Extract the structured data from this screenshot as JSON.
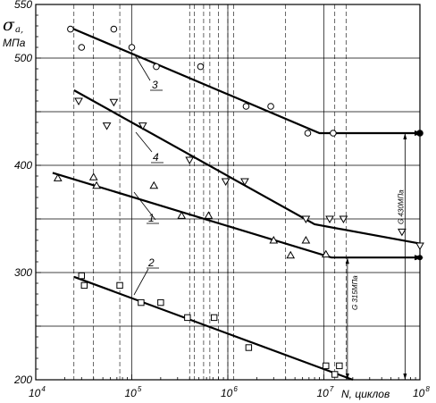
{
  "chart_data": {
    "type": "scatter",
    "title": "",
    "xlabel": "N, циклов",
    "ylabel_symbol": "σ",
    "ylabel_sub": "a,",
    "ylabel_unit": "МПа",
    "x_scale": "log",
    "xlim": [
      10000,
      100000000
    ],
    "ylim": [
      200,
      550
    ],
    "x_ticks": [
      {
        "base": "10",
        "exp": "4"
      },
      {
        "base": "10",
        "exp": "5"
      },
      {
        "base": "10",
        "exp": "6"
      },
      {
        "base": "10",
        "exp": "7"
      },
      {
        "base": "10",
        "exp": "8"
      }
    ],
    "y_ticks": [
      "200",
      "300",
      "400",
      "500",
      "550"
    ],
    "series": [
      {
        "name": "1",
        "marker": "triangle-up",
        "points": [
          [
            17000,
            388
          ],
          [
            40000,
            389
          ],
          [
            43000,
            381
          ],
          [
            170000,
            381
          ],
          [
            330000,
            353
          ],
          [
            630000,
            353
          ],
          [
            3000000,
            330
          ],
          [
            6500000,
            330
          ],
          [
            4500000,
            316
          ],
          [
            10500000,
            317
          ]
        ],
        "fit": [
          [
            15000,
            393
          ],
          [
            12000000,
            314
          ],
          [
            100000000,
            314
          ]
        ]
      },
      {
        "name": "2",
        "marker": "square",
        "points": [
          [
            30000,
            297
          ],
          [
            32000,
            288
          ],
          [
            75000,
            288
          ],
          [
            125000,
            272
          ],
          [
            200000,
            272
          ],
          [
            380000,
            258
          ],
          [
            720000,
            258
          ],
          [
            1650000,
            230
          ],
          [
            10500000,
            213
          ],
          [
            14500000,
            213
          ],
          [
            13000000,
            205
          ]
        ],
        "fit": [
          [
            25000,
            296
          ],
          [
            20000000,
            200
          ]
        ]
      },
      {
        "name": "3",
        "marker": "circle",
        "points": [
          [
            23000,
            527
          ],
          [
            30000,
            510
          ],
          [
            65000,
            527
          ],
          [
            100000,
            510
          ],
          [
            180000,
            492
          ],
          [
            520000,
            492
          ],
          [
            1550000,
            455
          ],
          [
            2800000,
            455
          ],
          [
            6800000,
            430
          ],
          [
            12500000,
            430
          ],
          [
            100000000,
            430
          ]
        ],
        "fit": [
          [
            25000,
            527
          ],
          [
            9000000,
            430
          ],
          [
            100000000,
            430
          ]
        ]
      },
      {
        "name": "4",
        "marker": "triangle-down",
        "points": [
          [
            28000,
            460
          ],
          [
            55000,
            437
          ],
          [
            65000,
            459
          ],
          [
            130000,
            437
          ],
          [
            400000,
            405
          ],
          [
            950000,
            385
          ],
          [
            1500000,
            385
          ],
          [
            6500000,
            350
          ],
          [
            11500000,
            350
          ],
          [
            16000000,
            350
          ],
          [
            65000000,
            338
          ],
          [
            100000000,
            325
          ]
        ],
        "fit": [
          [
            25000,
            470
          ],
          [
            8000000,
            345
          ],
          [
            100000000,
            327
          ]
        ]
      }
    ],
    "grid": true,
    "annotations": [
      {
        "text": "G 315МПа",
        "x": 28000000,
        "y": 280
      },
      {
        "text": "G 430МПа",
        "x": 85000000,
        "y": 370
      }
    ]
  }
}
